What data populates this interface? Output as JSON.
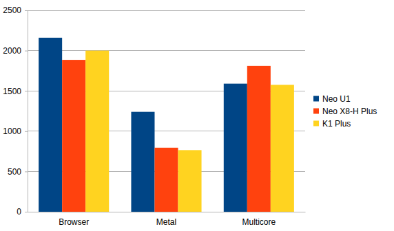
{
  "chart_data": {
    "type": "bar",
    "categories": [
      "Browser",
      "Metal",
      "Multicore"
    ],
    "series": [
      {
        "name": "Neo U1",
        "color": "#004586",
        "values": [
          2160,
          1240,
          1590
        ]
      },
      {
        "name": "Neo X8-H Plus",
        "color": "#ff420e",
        "values": [
          1885,
          795,
          1810
        ]
      },
      {
        "name": "K1 Plus",
        "color": "#ffd320",
        "values": [
          2000,
          765,
          1575
        ]
      }
    ],
    "ylim": [
      0,
      2500
    ],
    "yticks": [
      0,
      500,
      1000,
      1500,
      2000,
      2500
    ],
    "grid": true,
    "legend": "right"
  }
}
